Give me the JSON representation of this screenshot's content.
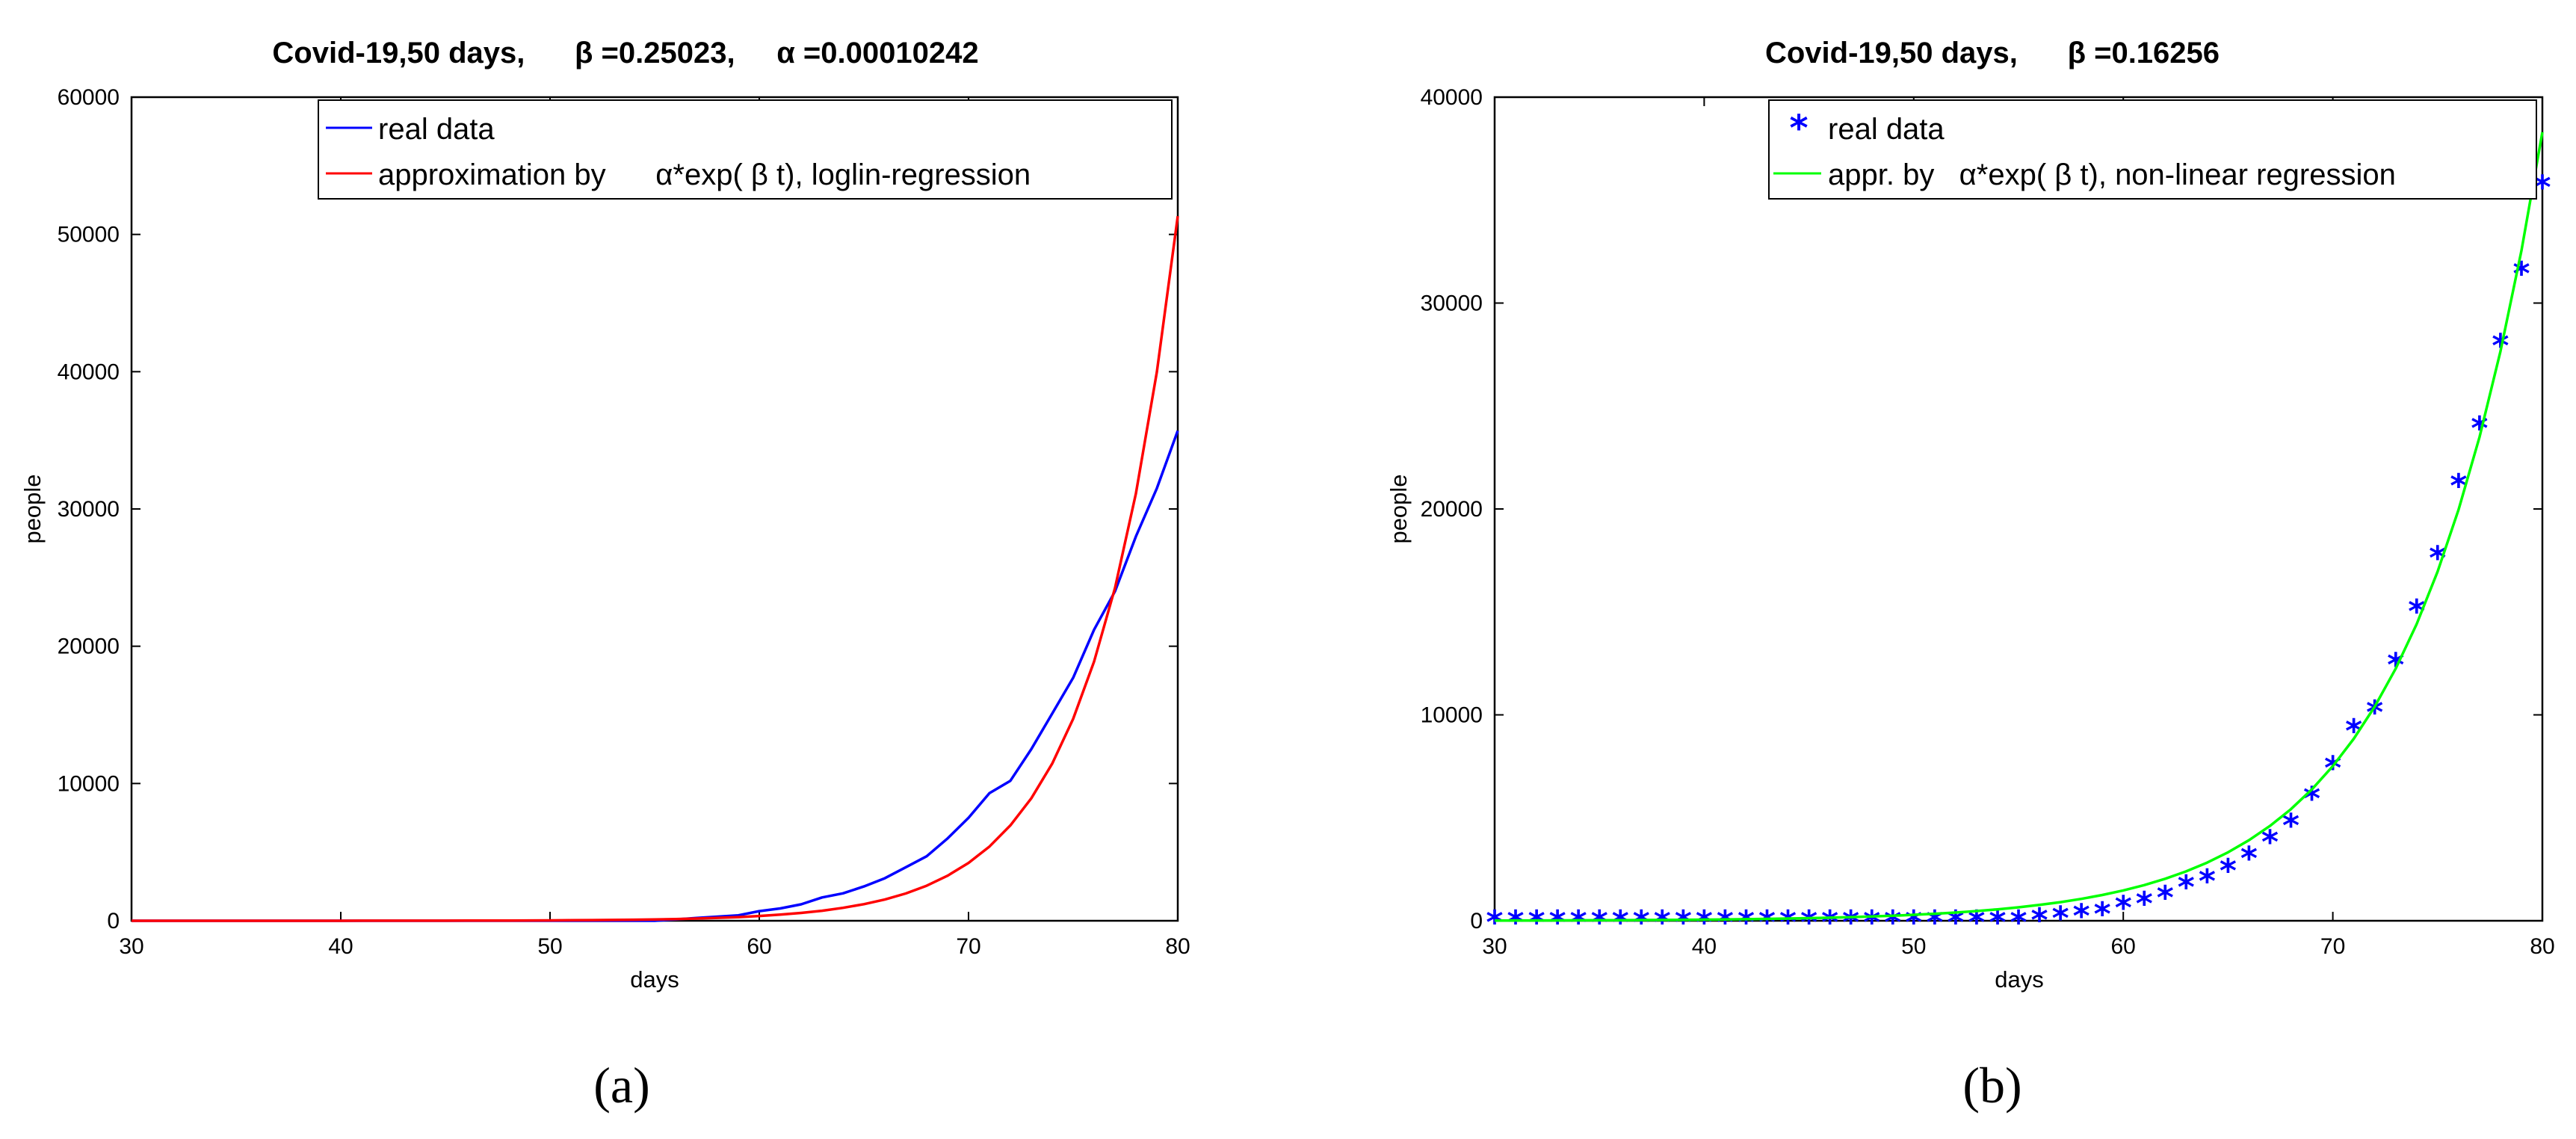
{
  "chart_data": [
    {
      "type": "line",
      "title": "Covid-19,50 days,      β =0.25023,     α =0.00010242",
      "xlabel": "days",
      "ylabel": "people",
      "xlim": [
        30,
        80
      ],
      "ylim": [
        0,
        60000
      ],
      "xticks": [
        30,
        40,
        50,
        60,
        70,
        80
      ],
      "yticks": [
        0,
        10000,
        20000,
        30000,
        40000,
        50000,
        60000
      ],
      "legend_position": "top-right",
      "grid": false,
      "caption": "(a)",
      "series": [
        {
          "name": "real data",
          "color": "#0000ff",
          "x": [
            30,
            31,
            32,
            33,
            34,
            35,
            36,
            37,
            38,
            39,
            40,
            41,
            42,
            43,
            44,
            45,
            46,
            47,
            48,
            49,
            50,
            51,
            52,
            53,
            54,
            55,
            56,
            57,
            58,
            59,
            60,
            61,
            62,
            63,
            64,
            65,
            66,
            67,
            68,
            69,
            70,
            71,
            72,
            73,
            74,
            75,
            76,
            77,
            78,
            79,
            80
          ],
          "y": [
            0,
            0,
            0,
            0,
            0,
            0,
            0,
            0,
            0,
            0,
            0,
            0,
            0,
            0,
            0,
            0,
            0,
            0,
            0,
            0,
            0,
            0,
            0,
            0,
            0,
            0,
            100,
            200,
            300,
            400,
            700,
            900,
            1200,
            1700,
            2000,
            2500,
            3100,
            3900,
            4700,
            6000,
            7500,
            9300,
            10200,
            12500,
            15100,
            17700,
            21200,
            24000,
            28000,
            31500,
            35700
          ]
        },
        {
          "name": "approximation by      α*exp( β t), loglin-regression",
          "color": "#ff0000",
          "x": [
            30,
            31,
            32,
            33,
            34,
            35,
            36,
            37,
            38,
            39,
            40,
            41,
            42,
            43,
            44,
            45,
            46,
            47,
            48,
            49,
            50,
            51,
            52,
            53,
            54,
            55,
            56,
            57,
            58,
            59,
            60,
            61,
            62,
            63,
            64,
            65,
            66,
            67,
            68,
            69,
            70,
            71,
            72,
            73,
            74,
            75,
            76,
            77,
            78,
            79,
            80
          ],
          "y": [
            0.2,
            0.2,
            0.3,
            0.4,
            0.5,
            0.6,
            0.8,
            1,
            1.3,
            1.7,
            2.3,
            2.9,
            3.8,
            4.9,
            6.3,
            8.1,
            10.4,
            13.4,
            17.2,
            22.1,
            28.4,
            36.5,
            46.8,
            60.1,
            77.1,
            99.1,
            127,
            163,
            210,
            269,
            346,
            444,
            570,
            732,
            940,
            1207,
            1549,
            1990,
            2555,
            3281,
            4213,
            5409,
            6946,
            8919,
            11452,
            14705,
            18882,
            24245,
            31132,
            39975,
            51330
          ]
        }
      ]
    },
    {
      "type": "scatter",
      "title": "Covid-19,50 days,      β =0.16256",
      "xlabel": "days",
      "ylabel": "people",
      "xlim": [
        30,
        80
      ],
      "ylim": [
        0,
        40000
      ],
      "xticks": [
        30,
        40,
        50,
        60,
        70,
        80
      ],
      "yticks": [
        0,
        10000,
        20000,
        30000,
        40000
      ],
      "legend_position": "top-right",
      "grid": false,
      "caption": "(b)",
      "series": [
        {
          "name": "real data",
          "style": "marker-star",
          "color": "#0000ff",
          "x": [
            30,
            31,
            32,
            33,
            34,
            35,
            36,
            37,
            38,
            39,
            40,
            41,
            42,
            43,
            44,
            45,
            46,
            47,
            48,
            49,
            50,
            51,
            52,
            53,
            54,
            55,
            56,
            57,
            58,
            59,
            60,
            61,
            62,
            63,
            64,
            65,
            66,
            67,
            68,
            69,
            70,
            71,
            72,
            73,
            74,
            75,
            76,
            77,
            78,
            79,
            80
          ],
          "y": [
            0,
            0,
            0,
            0,
            0,
            0,
            0,
            0,
            0,
            0,
            0,
            0,
            0,
            0,
            0,
            0,
            0,
            0,
            0,
            0,
            0,
            0,
            0,
            0,
            0,
            0,
            100,
            200,
            300,
            400,
            700,
            900,
            1200,
            1700,
            2000,
            2500,
            3100,
            3900,
            4700,
            6000,
            7500,
            9300,
            10200,
            12500,
            15100,
            17700,
            21200,
            24000,
            28000,
            31500,
            35700
          ]
        },
        {
          "name": "appr. by   α*exp( β t), non-linear regression",
          "style": "line",
          "color": "#00ff00",
          "x": [
            30,
            31,
            32,
            33,
            34,
            35,
            36,
            37,
            38,
            39,
            40,
            41,
            42,
            43,
            44,
            45,
            46,
            47,
            48,
            49,
            50,
            51,
            52,
            53,
            54,
            55,
            56,
            57,
            58,
            59,
            60,
            61,
            62,
            63,
            64,
            65,
            66,
            67,
            68,
            69,
            70,
            71,
            72,
            73,
            74,
            75,
            76,
            77,
            78,
            79,
            80
          ],
          "y": [
            11,
            13,
            15,
            18,
            21,
            25,
            30,
            35,
            41,
            48,
            56,
            66,
            78,
            92,
            108,
            128,
            150,
            177,
            208,
            245,
            289,
            340,
            400,
            471,
            554,
            652,
            768,
            903,
            1063,
            1251,
            1472,
            1733,
            2039,
            2400,
            2825,
            3325,
            3913,
            4606,
            5421,
            6380,
            7509,
            8838,
            10402,
            12243,
            14410,
            16960,
            19961,
            23493,
            27651,
            32544,
            38303
          ]
        }
      ]
    }
  ]
}
